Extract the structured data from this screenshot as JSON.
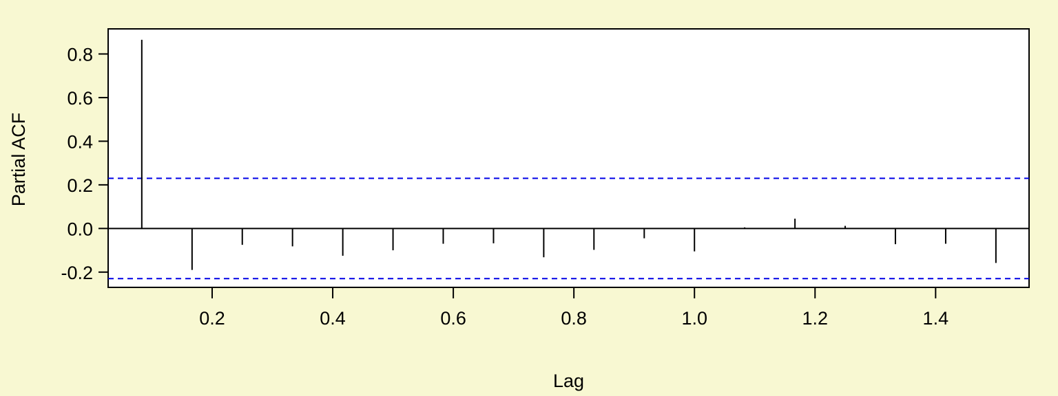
{
  "chart_data": {
    "type": "bar",
    "title": "",
    "xlabel": "Lag",
    "ylabel": "Partial ACF",
    "xlim": [
      0.0275,
      1.555
    ],
    "ylim": [
      -0.27,
      0.915
    ],
    "xticks": [
      {
        "value": 0.2,
        "label": "0.2"
      },
      {
        "value": 0.4,
        "label": "0.4"
      },
      {
        "value": 0.6,
        "label": "0.6"
      },
      {
        "value": 0.8,
        "label": "0.8"
      },
      {
        "value": 1.0,
        "label": "1.0"
      },
      {
        "value": 1.2,
        "label": "1.2"
      },
      {
        "value": 1.4,
        "label": "1.4"
      }
    ],
    "yticks": [
      {
        "value": -0.2,
        "label": "-0.2"
      },
      {
        "value": 0.0,
        "label": "0.0"
      },
      {
        "value": 0.2,
        "label": "0.2"
      },
      {
        "value": 0.4,
        "label": "0.4"
      },
      {
        "value": 0.6,
        "label": "0.6"
      },
      {
        "value": 0.8,
        "label": "0.8"
      }
    ],
    "confidence_bound": 0.23,
    "series": [
      {
        "x": [
          0.0833,
          0.1667,
          0.25,
          0.3333,
          0.4167,
          0.5,
          0.5833,
          0.6667,
          0.75,
          0.8333,
          0.9167,
          1.0,
          1.0833,
          1.1667,
          1.25,
          1.3333,
          1.4167,
          1.5
        ],
        "values": [
          0.865,
          -0.19,
          -0.075,
          -0.082,
          -0.125,
          -0.1,
          -0.07,
          -0.068,
          -0.132,
          -0.098,
          -0.045,
          -0.105,
          0.005,
          0.045,
          0.012,
          -0.072,
          -0.07,
          -0.158
        ]
      }
    ],
    "colors": {
      "background": "#f8f8d2",
      "panel": "#ffffff",
      "bars": "#000000",
      "bounds": "#0000e6"
    },
    "grid": false,
    "legend": "none"
  }
}
